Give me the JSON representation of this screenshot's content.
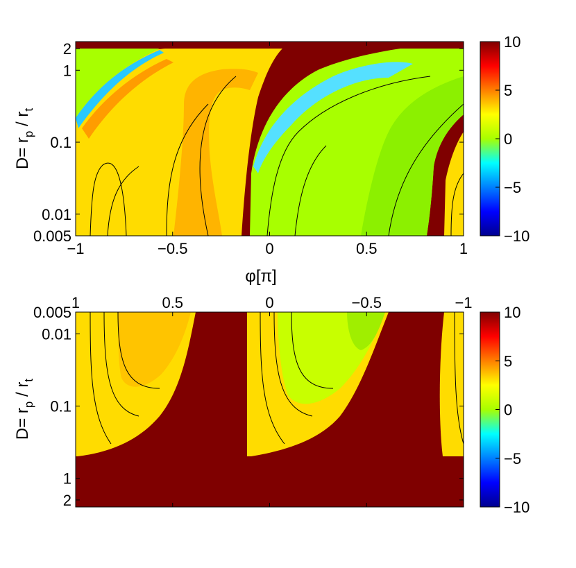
{
  "chart_data": [
    {
      "type": "heatmap",
      "title": "",
      "xlabel": "φ[π]",
      "ylabel_main": "D= r",
      "ylabel_sub1": "p",
      "ylabel_mid": " / r",
      "ylabel_sub2": "t",
      "xlim": [
        -1,
        1
      ],
      "ylim": [
        0.005,
        2.5
      ],
      "yscale": "log",
      "x_ticks": [
        -1,
        -0.5,
        0,
        0.5,
        1
      ],
      "x_tick_labels": [
        "−1",
        "−0.5",
        "0",
        "0.5",
        "1"
      ],
      "y_ticks": [
        0.005,
        0.01,
        0.1,
        1,
        2
      ],
      "y_tick_labels": [
        "0.005",
        "0.01",
        "0.1",
        "1",
        "2"
      ],
      "x_axis_position": "bottom",
      "colorbar": {
        "range": [
          -10,
          10
        ],
        "ticks": [
          10,
          5,
          0,
          -5,
          -10
        ],
        "tick_labels": [
          "10",
          "5",
          "0",
          "−5",
          "−10"
        ],
        "colormap": "jet"
      },
      "regions_note": "saturated (>10) dark-red bands between yellow/green lobes; contour lines in black"
    },
    {
      "type": "heatmap",
      "title": "",
      "xlabel": "",
      "ylabel_main": "D= r",
      "ylabel_sub1": "p",
      "ylabel_mid": " / r",
      "ylabel_sub2": "t",
      "xlim": [
        1,
        -1
      ],
      "ylim": [
        2.5,
        0.005
      ],
      "yscale": "log",
      "x_ticks": [
        1,
        0.5,
        0,
        -0.5,
        -1
      ],
      "x_tick_labels": [
        "1",
        "0.5",
        "0",
        "−0.5",
        "−1"
      ],
      "y_ticks": [
        0.005,
        0.01,
        0.1,
        1,
        2
      ],
      "y_tick_labels": [
        "0.005",
        "0.01",
        "0.1",
        "1",
        "2"
      ],
      "x_axis_position": "top",
      "colorbar": {
        "range": [
          -10,
          10
        ],
        "ticks": [
          10,
          5,
          0,
          -5,
          -10
        ],
        "tick_labels": [
          "10",
          "5",
          "0",
          "−5",
          "−10"
        ],
        "colormap": "jet"
      }
    }
  ]
}
